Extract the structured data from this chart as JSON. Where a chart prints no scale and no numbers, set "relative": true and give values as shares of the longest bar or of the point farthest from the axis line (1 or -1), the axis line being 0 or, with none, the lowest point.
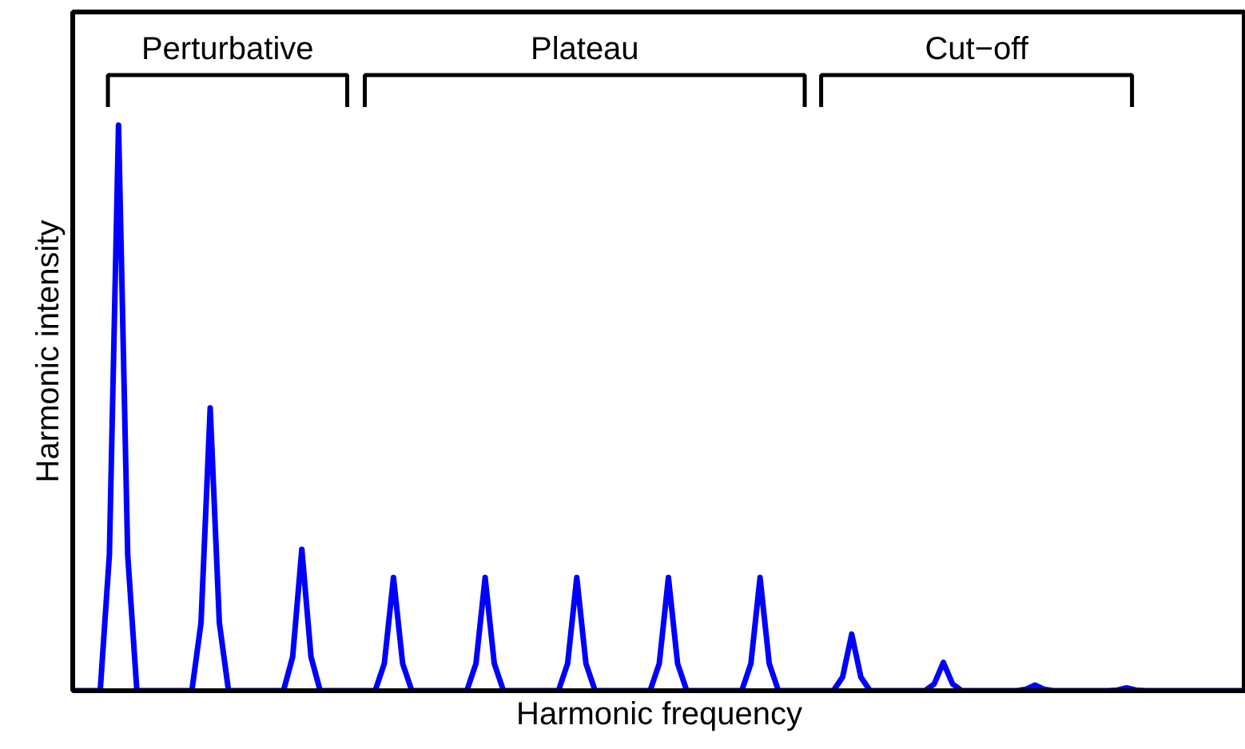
{
  "chart_data": {
    "type": "line",
    "relative": true,
    "xlabel": "Harmonic frequency",
    "ylabel": "Harmonic intensity",
    "categories": [
      null,
      null,
      null,
      null,
      null,
      null,
      null,
      null,
      null,
      null,
      null,
      null,
      null,
      null,
      null,
      null,
      null,
      null,
      null,
      null,
      null,
      null,
      null,
      null,
      null,
      null,
      null,
      null,
      null,
      null,
      null,
      null,
      null,
      null,
      null,
      null,
      null,
      null,
      null,
      null,
      null,
      null,
      null,
      null,
      null,
      null,
      null,
      null,
      null,
      null,
      null,
      null,
      null,
      null,
      null,
      null,
      null,
      null,
      null,
      null,
      null,
      null,
      null,
      null,
      null,
      null,
      null,
      null,
      null,
      null,
      null,
      null,
      null,
      null,
      null,
      null,
      null,
      null,
      null,
      null,
      null,
      null,
      null,
      null,
      null,
      null,
      null,
      null,
      null,
      null,
      null,
      null,
      null,
      null,
      null,
      null,
      null,
      null,
      null,
      null,
      null,
      null,
      null,
      null,
      null,
      null,
      null,
      null,
      null,
      null,
      null,
      null,
      null,
      null,
      null,
      null,
      null,
      null,
      null,
      null,
      null,
      null,
      null,
      null,
      null,
      null,
      null,
      null,
      null
    ],
    "series": [
      {
        "color": "#0000ff",
        "values": [
          0,
          0,
          0,
          0,
          0.24,
          1,
          0.24,
          0,
          0,
          0,
          0,
          0,
          0,
          0,
          0.12,
          0.5,
          0.12,
          0,
          0,
          0,
          0,
          0,
          0,
          0,
          0.06,
          0.25,
          0.06,
          0,
          0,
          0,
          0,
          0,
          0,
          0,
          0.048,
          0.2,
          0.048,
          0,
          0,
          0,
          0,
          0,
          0,
          0,
          0.048,
          0.2,
          0.048,
          0,
          0,
          0,
          0,
          0,
          0,
          0,
          0.048,
          0.2,
          0.048,
          0,
          0,
          0,
          0,
          0,
          0,
          0,
          0.048,
          0.2,
          0.048,
          0,
          0,
          0,
          0,
          0,
          0,
          0,
          0.048,
          0.2,
          0.048,
          0,
          0,
          0,
          0,
          0,
          0,
          0,
          0.024,
          0.1,
          0.024,
          0,
          0,
          0,
          0,
          0,
          0,
          0,
          0.012,
          0.05,
          0.012,
          0,
          0,
          0,
          0,
          0,
          0,
          0,
          0.0024,
          0.01,
          0.0024,
          0,
          0,
          0,
          0,
          0,
          0,
          0,
          0.0012,
          0.005,
          0.0012,
          0,
          0,
          0,
          0,
          0,
          0,
          0,
          0,
          0,
          0,
          0,
          0
        ]
      }
    ],
    "annotations": [
      "Perturbative",
      "Plateau",
      "Cut−off"
    ]
  }
}
